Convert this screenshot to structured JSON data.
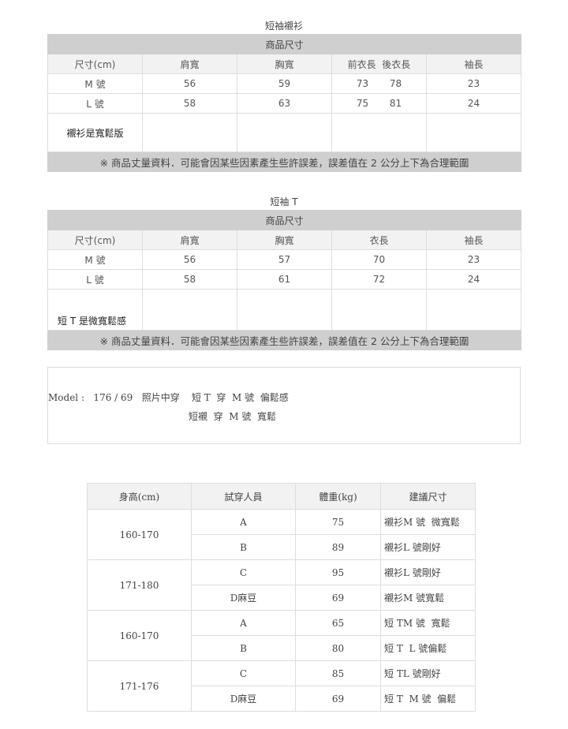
{
  "tables": [
    {
      "title": "短袖襯衫",
      "bar": "商品尺寸",
      "headers": [
        "尺寸(cm)",
        "肩寬",
        "胸寬",
        "前衣長  後衣長",
        "袖長"
      ],
      "rows": [
        [
          "M 號",
          "56",
          "59",
          "73       78",
          "23"
        ],
        [
          "L 號",
          "58",
          "63",
          "75       81",
          "24"
        ]
      ],
      "note": "襯衫是寬鬆版",
      "footer": "※ 商品丈量資料．可能會因某些因素產生些許誤差，誤差值在 2 公分上下為合理範圍"
    },
    {
      "title": "短袖 T",
      "bar": "商品尺寸",
      "headers": [
        "尺寸(cm)",
        "肩寬",
        "胸寬",
        "衣長",
        "袖長"
      ],
      "rows": [
        [
          "M 號",
          "56",
          "57",
          "70",
          "23"
        ],
        [
          "L 號",
          "58",
          "61",
          "72",
          "24"
        ]
      ],
      "note": "短 T 是微寬鬆感",
      "footer": "※ 商品丈量資料．可能會因某些因素產生些許誤差，誤差值在 2 公分上下為合理範圍"
    }
  ],
  "model": {
    "line1": "Model :   176 / 69   照片中穿    短 T  穿  M 號  偏鬆感",
    "line2": "短襯  穿  M 號  寬鬆"
  },
  "fit_table": {
    "headers": [
      "身高(cm)",
      "試穿人員",
      "體重(kg)",
      "建議尺寸"
    ],
    "groups": [
      {
        "height": "160-170",
        "rows": [
          [
            "A",
            "75",
            "襯衫M 號  微寬鬆"
          ],
          [
            "B",
            "89",
            "襯衫L 號剛好"
          ]
        ]
      },
      {
        "height": "171-180",
        "rows": [
          [
            "C",
            "95",
            "襯衫L 號剛好"
          ],
          [
            "D麻豆",
            "69",
            "襯衫M 號寬鬆"
          ]
        ]
      },
      {
        "height": "160-170",
        "rows": [
          [
            "A",
            "65",
            "短 TM 號  寬鬆"
          ],
          [
            "B",
            "80",
            "短 T  L 號偏鬆"
          ]
        ]
      },
      {
        "height": "171-176",
        "rows": [
          [
            "C",
            "85",
            "短 TL 號剛好"
          ],
          [
            "D麻豆",
            "69",
            "短 T  M 號  偏鬆"
          ]
        ]
      }
    ]
  }
}
